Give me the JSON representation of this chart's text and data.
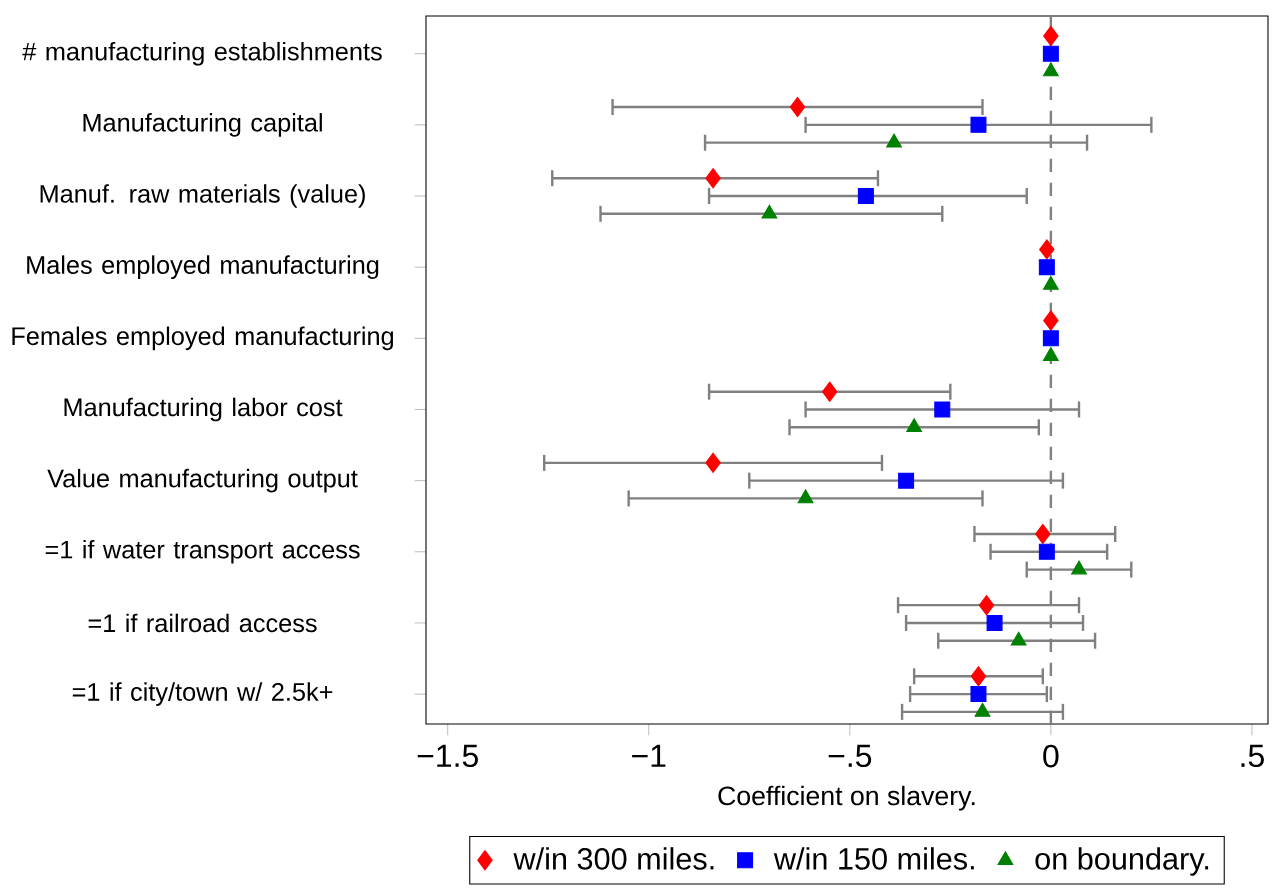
{
  "chart_data": {
    "type": "scatter",
    "orientation": "horizontal",
    "xlabel": "Coefficient on slavery.",
    "categories": [
      "# manufacturing establishments",
      "Manufacturing capital",
      "Manuf. raw materials (value)",
      "Males employed manufacturing",
      "Females employed manufacturing",
      "Manufacturing labor cost",
      "Value manufacturing output",
      "=1 if water transport access",
      "=1 if railroad access",
      "=1 if city/town w/ 2.5k+"
    ],
    "series": [
      {
        "name": "w/in 300 miles.",
        "color": "#ff0000",
        "marker": "diamond",
        "values": [
          0,
          -0.63,
          -0.84,
          -0.01,
          0,
          -0.55,
          -0.84,
          -0.02,
          -0.16,
          -0.18
        ],
        "errors": [
          null,
          [
            -1.09,
            -0.17
          ],
          [
            -1.24,
            -0.43
          ],
          null,
          null,
          [
            -0.85,
            -0.25
          ],
          [
            -1.26,
            -0.42
          ],
          [
            -0.19,
            0.16
          ],
          [
            -0.38,
            0.07
          ],
          [
            -0.34,
            -0.02
          ]
        ]
      },
      {
        "name": "w/in 150 miles.",
        "color": "#0000ff",
        "marker": "square",
        "values": [
          0,
          -0.18,
          -0.46,
          -0.01,
          0,
          -0.27,
          -0.36,
          -0.01,
          -0.14,
          -0.18
        ],
        "errors": [
          null,
          [
            -0.61,
            0.25
          ],
          [
            -0.85,
            -0.06
          ],
          null,
          null,
          [
            -0.61,
            0.07
          ],
          [
            -0.75,
            0.03
          ],
          [
            -0.15,
            0.14
          ],
          [
            -0.36,
            0.08
          ],
          [
            -0.35,
            -0.01
          ]
        ]
      },
      {
        "name": "on boundary.",
        "color": "#008000",
        "marker": "triangle",
        "values": [
          0,
          -0.39,
          -0.7,
          0,
          0,
          -0.34,
          -0.61,
          0.07,
          -0.08,
          -0.17
        ],
        "errors": [
          null,
          [
            -0.86,
            0.09
          ],
          [
            -1.12,
            -0.27
          ],
          null,
          null,
          [
            -0.65,
            -0.03
          ],
          [
            -1.05,
            -0.17
          ],
          [
            -0.06,
            0.2
          ],
          [
            -0.28,
            0.11
          ],
          [
            -0.37,
            0.03
          ]
        ]
      }
    ],
    "xlim": [
      -1.554,
      0.54
    ],
    "xticks": [
      {
        "value": -1.5,
        "label": "−1.5"
      },
      {
        "value": -1,
        "label": "−1"
      },
      {
        "value": -0.5,
        "label": "−.5"
      },
      {
        "value": 0,
        "label": "0"
      },
      {
        "value": 0.5,
        "label": ".5"
      }
    ],
    "ref_lines": [
      {
        "axis": "x",
        "value": 0,
        "color": "#808080",
        "line_style": "dashed"
      }
    ],
    "legend": "bottom",
    "grid": false
  }
}
